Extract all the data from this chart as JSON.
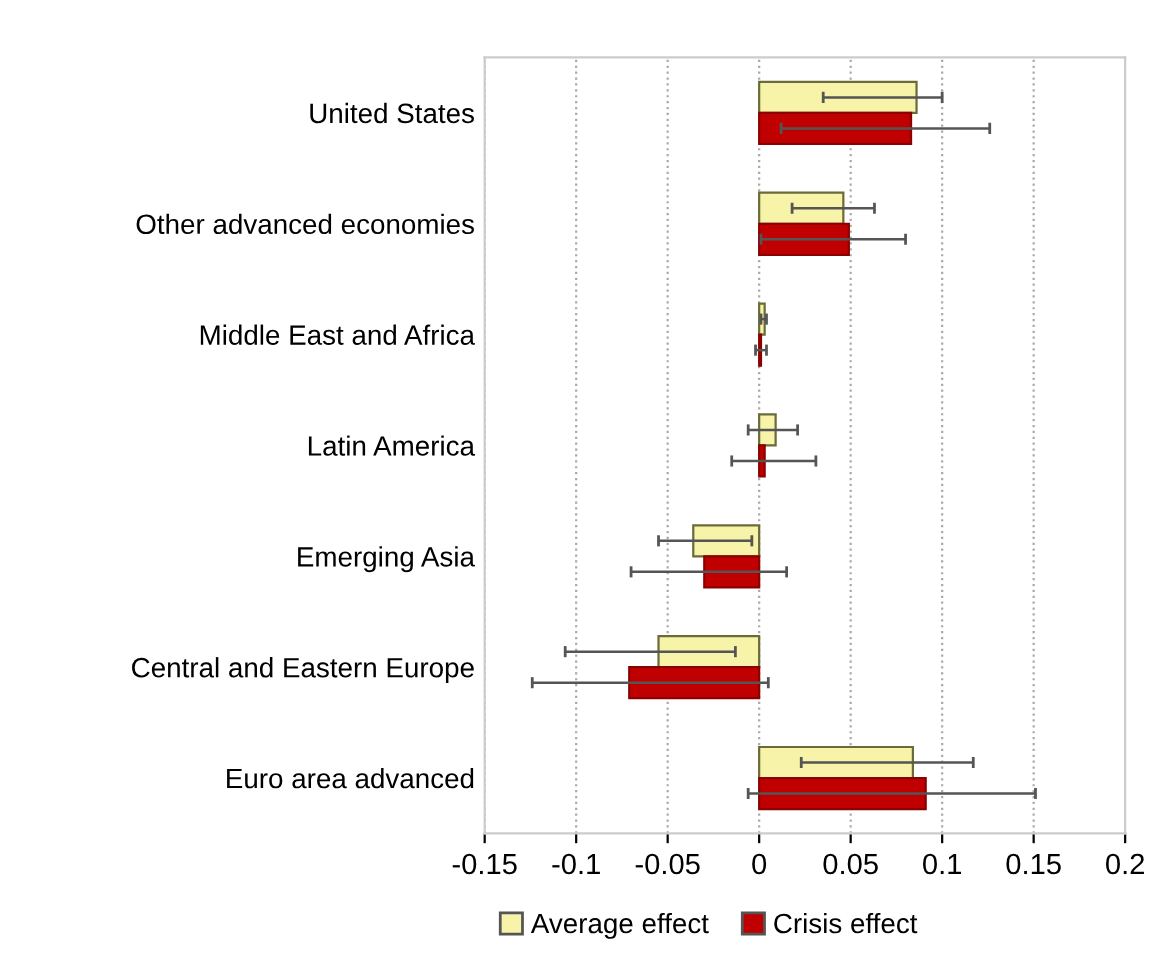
{
  "chart_data": {
    "type": "bar",
    "orientation": "horizontal",
    "categories": [
      "United States",
      "Other advanced economies",
      "Middle East and Africa",
      "Latin America",
      "Emerging Asia",
      "Central and Eastern Europe",
      "Euro area advanced"
    ],
    "series": [
      {
        "name": "Average effect",
        "color": "#f7f3a8",
        "values": [
          0.086,
          0.046,
          0.003,
          0.009,
          -0.036,
          -0.055,
          0.084
        ],
        "errors": [
          [
            0.035,
            0.1
          ],
          [
            0.018,
            0.063
          ],
          [
            0.001,
            0.004
          ],
          [
            -0.006,
            0.021
          ],
          [
            -0.055,
            -0.004
          ],
          [
            -0.106,
            -0.013
          ],
          [
            0.023,
            0.117
          ]
        ]
      },
      {
        "name": "Crisis effect",
        "color": "#c00000",
        "values": [
          0.083,
          0.049,
          0.001,
          0.003,
          -0.03,
          -0.071,
          0.091
        ],
        "errors": [
          [
            0.012,
            0.126
          ],
          [
            0.001,
            0.08
          ],
          [
            -0.002,
            0.004
          ],
          [
            -0.015,
            0.031
          ],
          [
            -0.07,
            0.015
          ],
          [
            -0.124,
            0.005
          ],
          [
            -0.006,
            0.151
          ]
        ]
      }
    ],
    "xlim": [
      -0.15,
      0.2
    ],
    "xticks": [
      -0.15,
      -0.1,
      -0.05,
      0,
      0.05,
      0.1,
      0.15,
      0.2
    ],
    "grid": "x",
    "legend": "bottom"
  }
}
